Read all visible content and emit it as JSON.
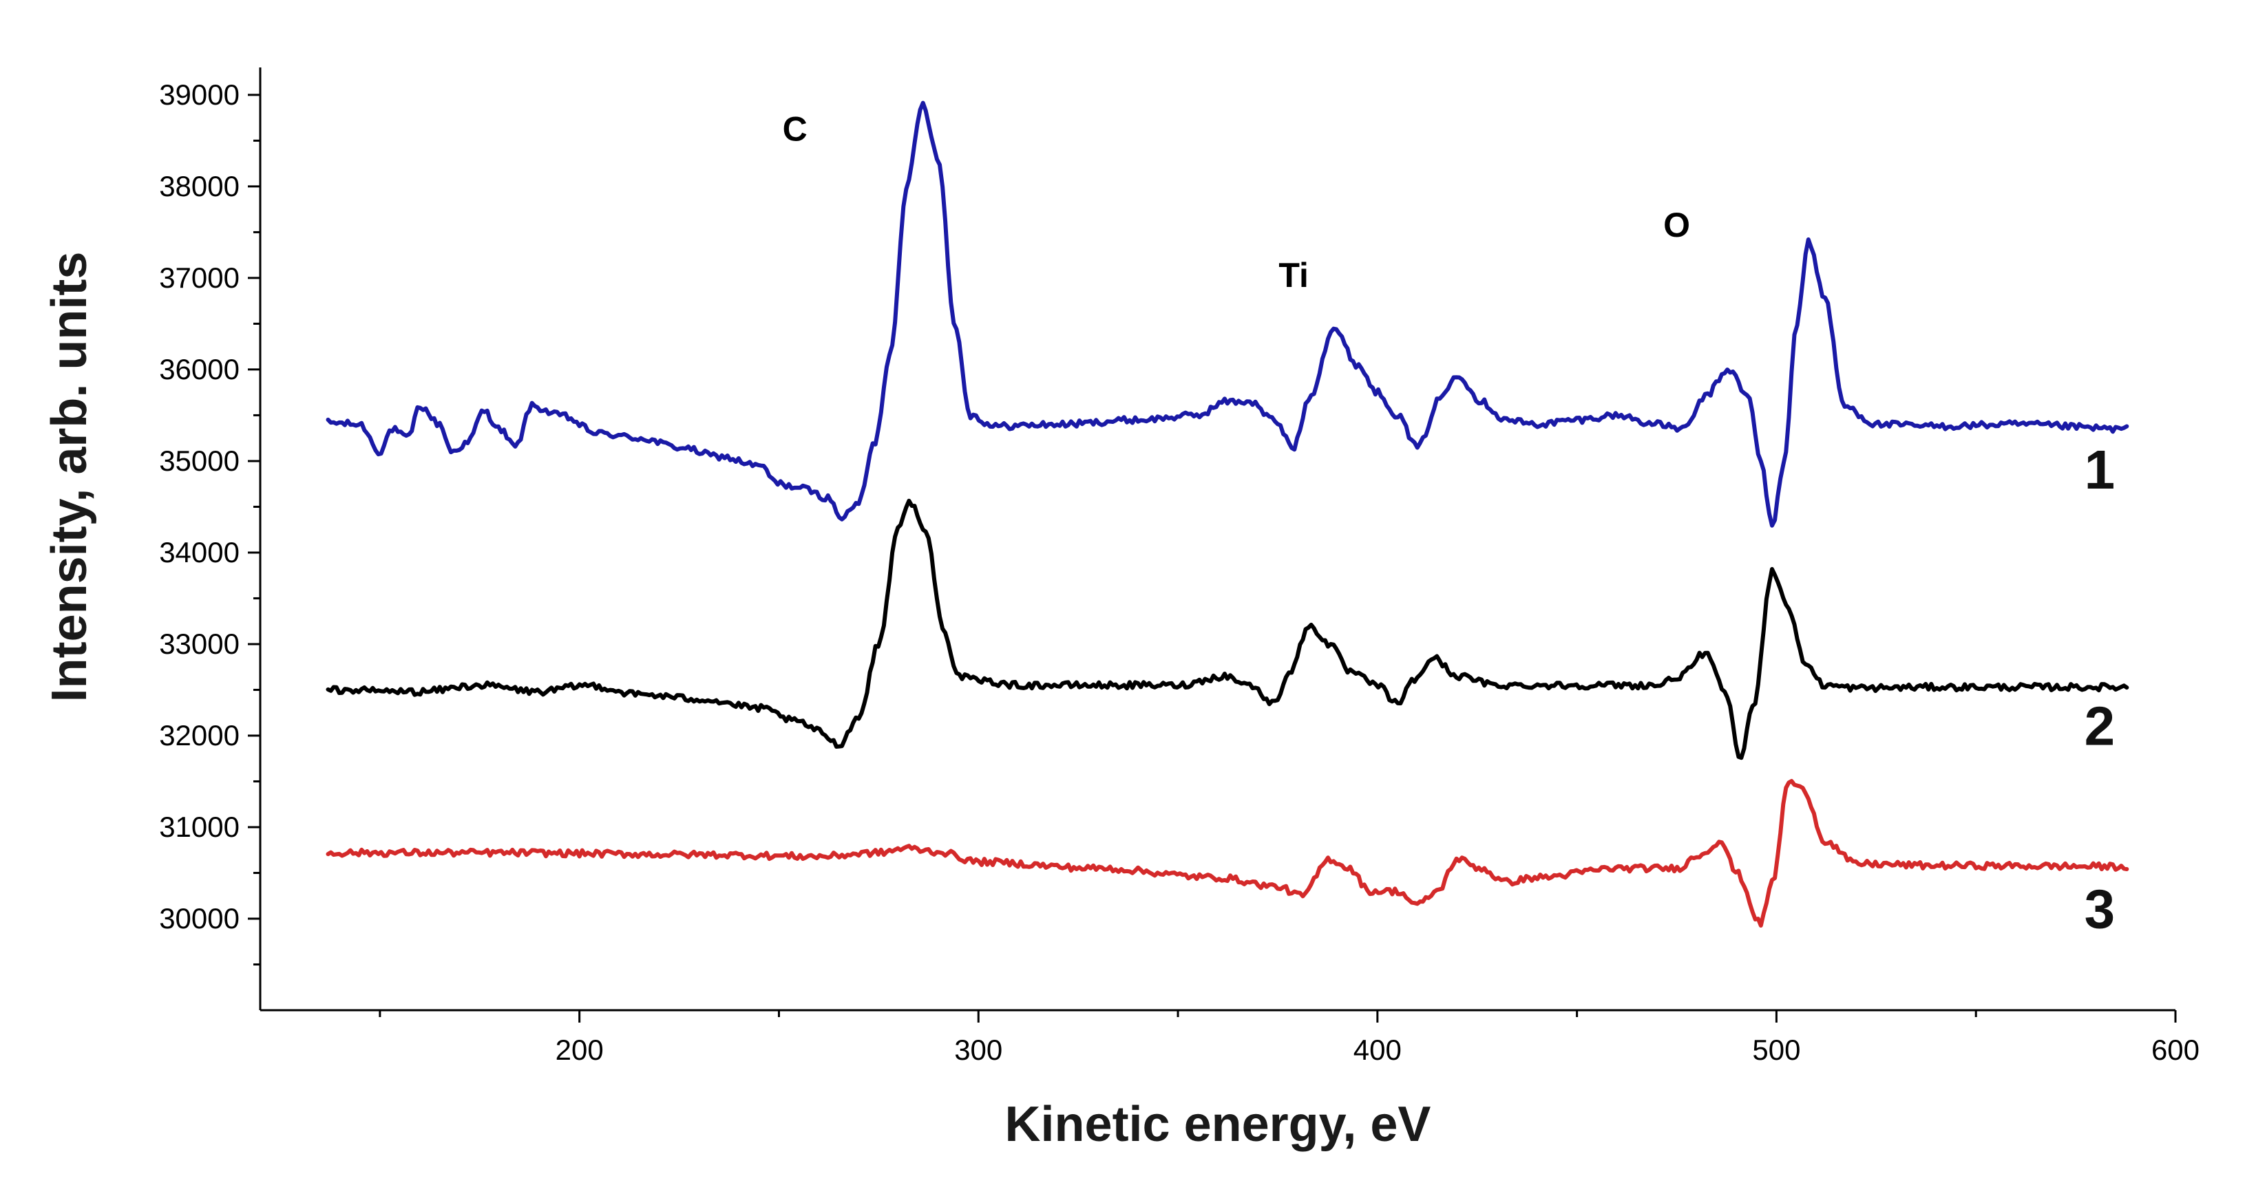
{
  "chart_data": {
    "type": "line",
    "title": "",
    "xlabel": "Kinetic energy, eV",
    "ylabel": "Intensity, arb. units",
    "xlim": [
      120,
      600
    ],
    "ylim": [
      29000,
      39300
    ],
    "xticks": [
      200,
      300,
      400,
      500,
      600
    ],
    "yticks": [
      30000,
      31000,
      32000,
      33000,
      34000,
      35000,
      36000,
      37000,
      38000,
      39000
    ],
    "x_range": [
      137,
      588
    ],
    "annotations": [
      {
        "text": "C",
        "x": 254,
        "y": 38500
      },
      {
        "text": "Ti",
        "x": 379,
        "y": 36900
      },
      {
        "text": "O",
        "x": 475,
        "y": 37450
      }
    ],
    "series": [
      {
        "name": "1",
        "color": "#1a1aa6",
        "baseline": 35400,
        "label_at": [
          581,
          34700
        ],
        "x": [
          137,
          145,
          150,
          153,
          157,
          160,
          165,
          168,
          172,
          176,
          180,
          184,
          188,
          195,
          205,
          215,
          225,
          235,
          245,
          250,
          256,
          262,
          266,
          270,
          274,
          278,
          282,
          286,
          290,
          294,
          298,
          304,
          320,
          340,
          355,
          362,
          368,
          374,
          379,
          383,
          389,
          395,
          400,
          405,
          410,
          416,
          420,
          426,
          432,
          440,
          450,
          460,
          470,
          477,
          482,
          488,
          493,
          496,
          499,
          502,
          505,
          508,
          512,
          517,
          525,
          540,
          560,
          588
        ],
        "values": [
          35420,
          35400,
          35100,
          35350,
          35250,
          35600,
          35400,
          35100,
          35200,
          35550,
          35350,
          35150,
          35600,
          35500,
          35300,
          35250,
          35150,
          35050,
          34950,
          34750,
          34700,
          34600,
          34380,
          34550,
          35200,
          36200,
          38000,
          38900,
          38300,
          36500,
          35500,
          35380,
          35400,
          35450,
          35500,
          35650,
          35650,
          35450,
          35150,
          35700,
          36450,
          36050,
          35750,
          35500,
          35150,
          35700,
          35950,
          35650,
          35450,
          35400,
          35450,
          35500,
          35400,
          35350,
          35700,
          36000,
          35700,
          35000,
          34300,
          35000,
          36500,
          37400,
          36800,
          35600,
          35400,
          35380,
          35400,
          35350
        ]
      },
      {
        "name": "2",
        "color": "#000000",
        "baseline": 32500,
        "label_at": [
          581,
          31900
        ],
        "x": [
          137,
          160,
          175,
          190,
          202,
          215,
          230,
          245,
          255,
          260,
          265,
          270,
          275,
          280,
          283,
          287,
          291,
          295,
          300,
          310,
          330,
          350,
          362,
          368,
          374,
          378,
          383,
          388,
          393,
          400,
          405,
          409,
          414,
          420,
          430,
          450,
          470,
          476,
          482,
          487,
          491,
          494,
          499,
          503,
          507,
          512,
          520,
          540,
          588
        ],
        "values": [
          32500,
          32480,
          32550,
          32480,
          32550,
          32450,
          32400,
          32300,
          32150,
          32050,
          31900,
          32200,
          33000,
          34300,
          34550,
          34200,
          33200,
          32650,
          32600,
          32550,
          32550,
          32550,
          32650,
          32550,
          32350,
          32700,
          33200,
          33000,
          32700,
          32550,
          32350,
          32600,
          32850,
          32650,
          32550,
          32550,
          32550,
          32650,
          32900,
          32500,
          31750,
          32300,
          33800,
          33400,
          32800,
          32550,
          32520,
          32530,
          32530
        ]
      },
      {
        "name": "3",
        "color": "#d42a2a",
        "baseline": 30700,
        "label_at": [
          581,
          29900
        ],
        "x": [
          137,
          180,
          230,
          260,
          275,
          282,
          290,
          300,
          330,
          360,
          375,
          381,
          388,
          393,
          398,
          405,
          410,
          415,
          420,
          426,
          432,
          440,
          460,
          475,
          481,
          486,
          490,
          496,
          499,
          503,
          507,
          512,
          520,
          540,
          588
        ],
        "values": [
          30720,
          30720,
          30700,
          30680,
          30720,
          30770,
          30730,
          30620,
          30550,
          30450,
          30350,
          30250,
          30650,
          30550,
          30300,
          30300,
          30150,
          30300,
          30650,
          30550,
          30400,
          30450,
          30550,
          30550,
          30700,
          30850,
          30500,
          29950,
          30400,
          31500,
          31400,
          30850,
          30600,
          30580,
          30570
        ]
      }
    ]
  }
}
